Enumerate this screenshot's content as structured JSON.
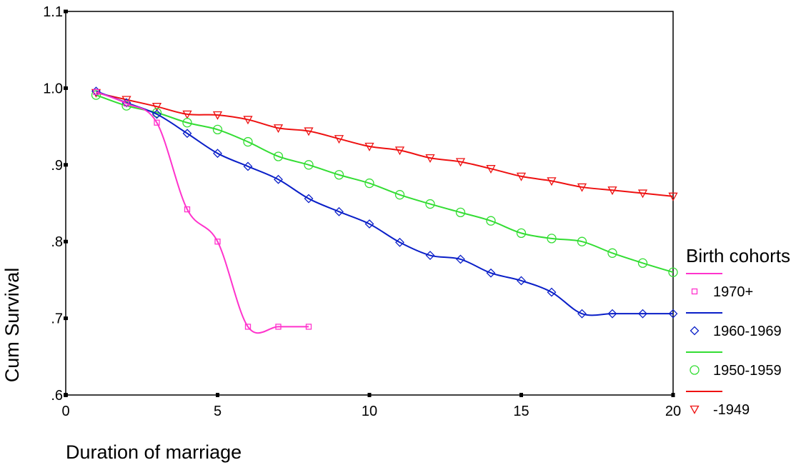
{
  "chart_data": {
    "type": "line",
    "title": "",
    "xlabel": "Duration of marriage",
    "ylabel": "Cum Survival",
    "xlim": [
      0,
      20
    ],
    "ylim": [
      0.6,
      1.1
    ],
    "x_ticks": [
      0,
      5,
      10,
      15,
      20
    ],
    "x_tick_labels": [
      "0",
      "5",
      "10",
      "15",
      "20"
    ],
    "y_ticks": [
      0.6,
      0.7,
      0.8,
      0.9,
      1.0,
      1.1
    ],
    "y_tick_labels": [
      ".6",
      ".7",
      ".8",
      ".9",
      "1.0",
      "1.1"
    ],
    "grid": false,
    "legend": {
      "title": "Birth cohorts",
      "placement": "right"
    },
    "series": [
      {
        "name": "1970+",
        "color": "#ff33cc",
        "marker": "square",
        "x": [
          1,
          2,
          3,
          4,
          5,
          6,
          7,
          8
        ],
        "y": [
          0.995,
          0.98,
          0.955,
          0.842,
          0.8,
          0.689,
          0.689,
          0.689
        ]
      },
      {
        "name": "1960-1969",
        "color": "#0a1fc8",
        "marker": "diamond",
        "x": [
          1,
          2,
          3,
          4,
          5,
          6,
          7,
          8,
          9,
          10,
          11,
          12,
          13,
          14,
          15,
          16,
          17,
          18,
          19,
          20
        ],
        "y": [
          0.996,
          0.981,
          0.966,
          0.941,
          0.915,
          0.898,
          0.881,
          0.856,
          0.839,
          0.823,
          0.799,
          0.782,
          0.777,
          0.759,
          0.749,
          0.734,
          0.706,
          0.706,
          0.706,
          0.706
        ]
      },
      {
        "name": "1950-1959",
        "color": "#33dd33",
        "marker": "circle",
        "x": [
          1,
          2,
          3,
          4,
          5,
          6,
          7,
          8,
          9,
          10,
          11,
          12,
          13,
          14,
          15,
          16,
          17,
          18,
          19,
          20
        ],
        "y": [
          0.991,
          0.977,
          0.968,
          0.955,
          0.946,
          0.93,
          0.911,
          0.9,
          0.887,
          0.876,
          0.861,
          0.849,
          0.838,
          0.827,
          0.811,
          0.804,
          0.8,
          0.785,
          0.772,
          0.76
        ]
      },
      {
        "name": "-1949",
        "color": "#ee1111",
        "marker": "triangle-down",
        "x": [
          1,
          2,
          3,
          4,
          5,
          6,
          7,
          8,
          9,
          10,
          11,
          12,
          13,
          14,
          15,
          16,
          17,
          18,
          19,
          20
        ],
        "y": [
          0.994,
          0.985,
          0.976,
          0.966,
          0.965,
          0.959,
          0.948,
          0.944,
          0.934,
          0.924,
          0.919,
          0.909,
          0.904,
          0.895,
          0.885,
          0.879,
          0.871,
          0.867,
          0.863,
          0.859
        ]
      }
    ]
  }
}
